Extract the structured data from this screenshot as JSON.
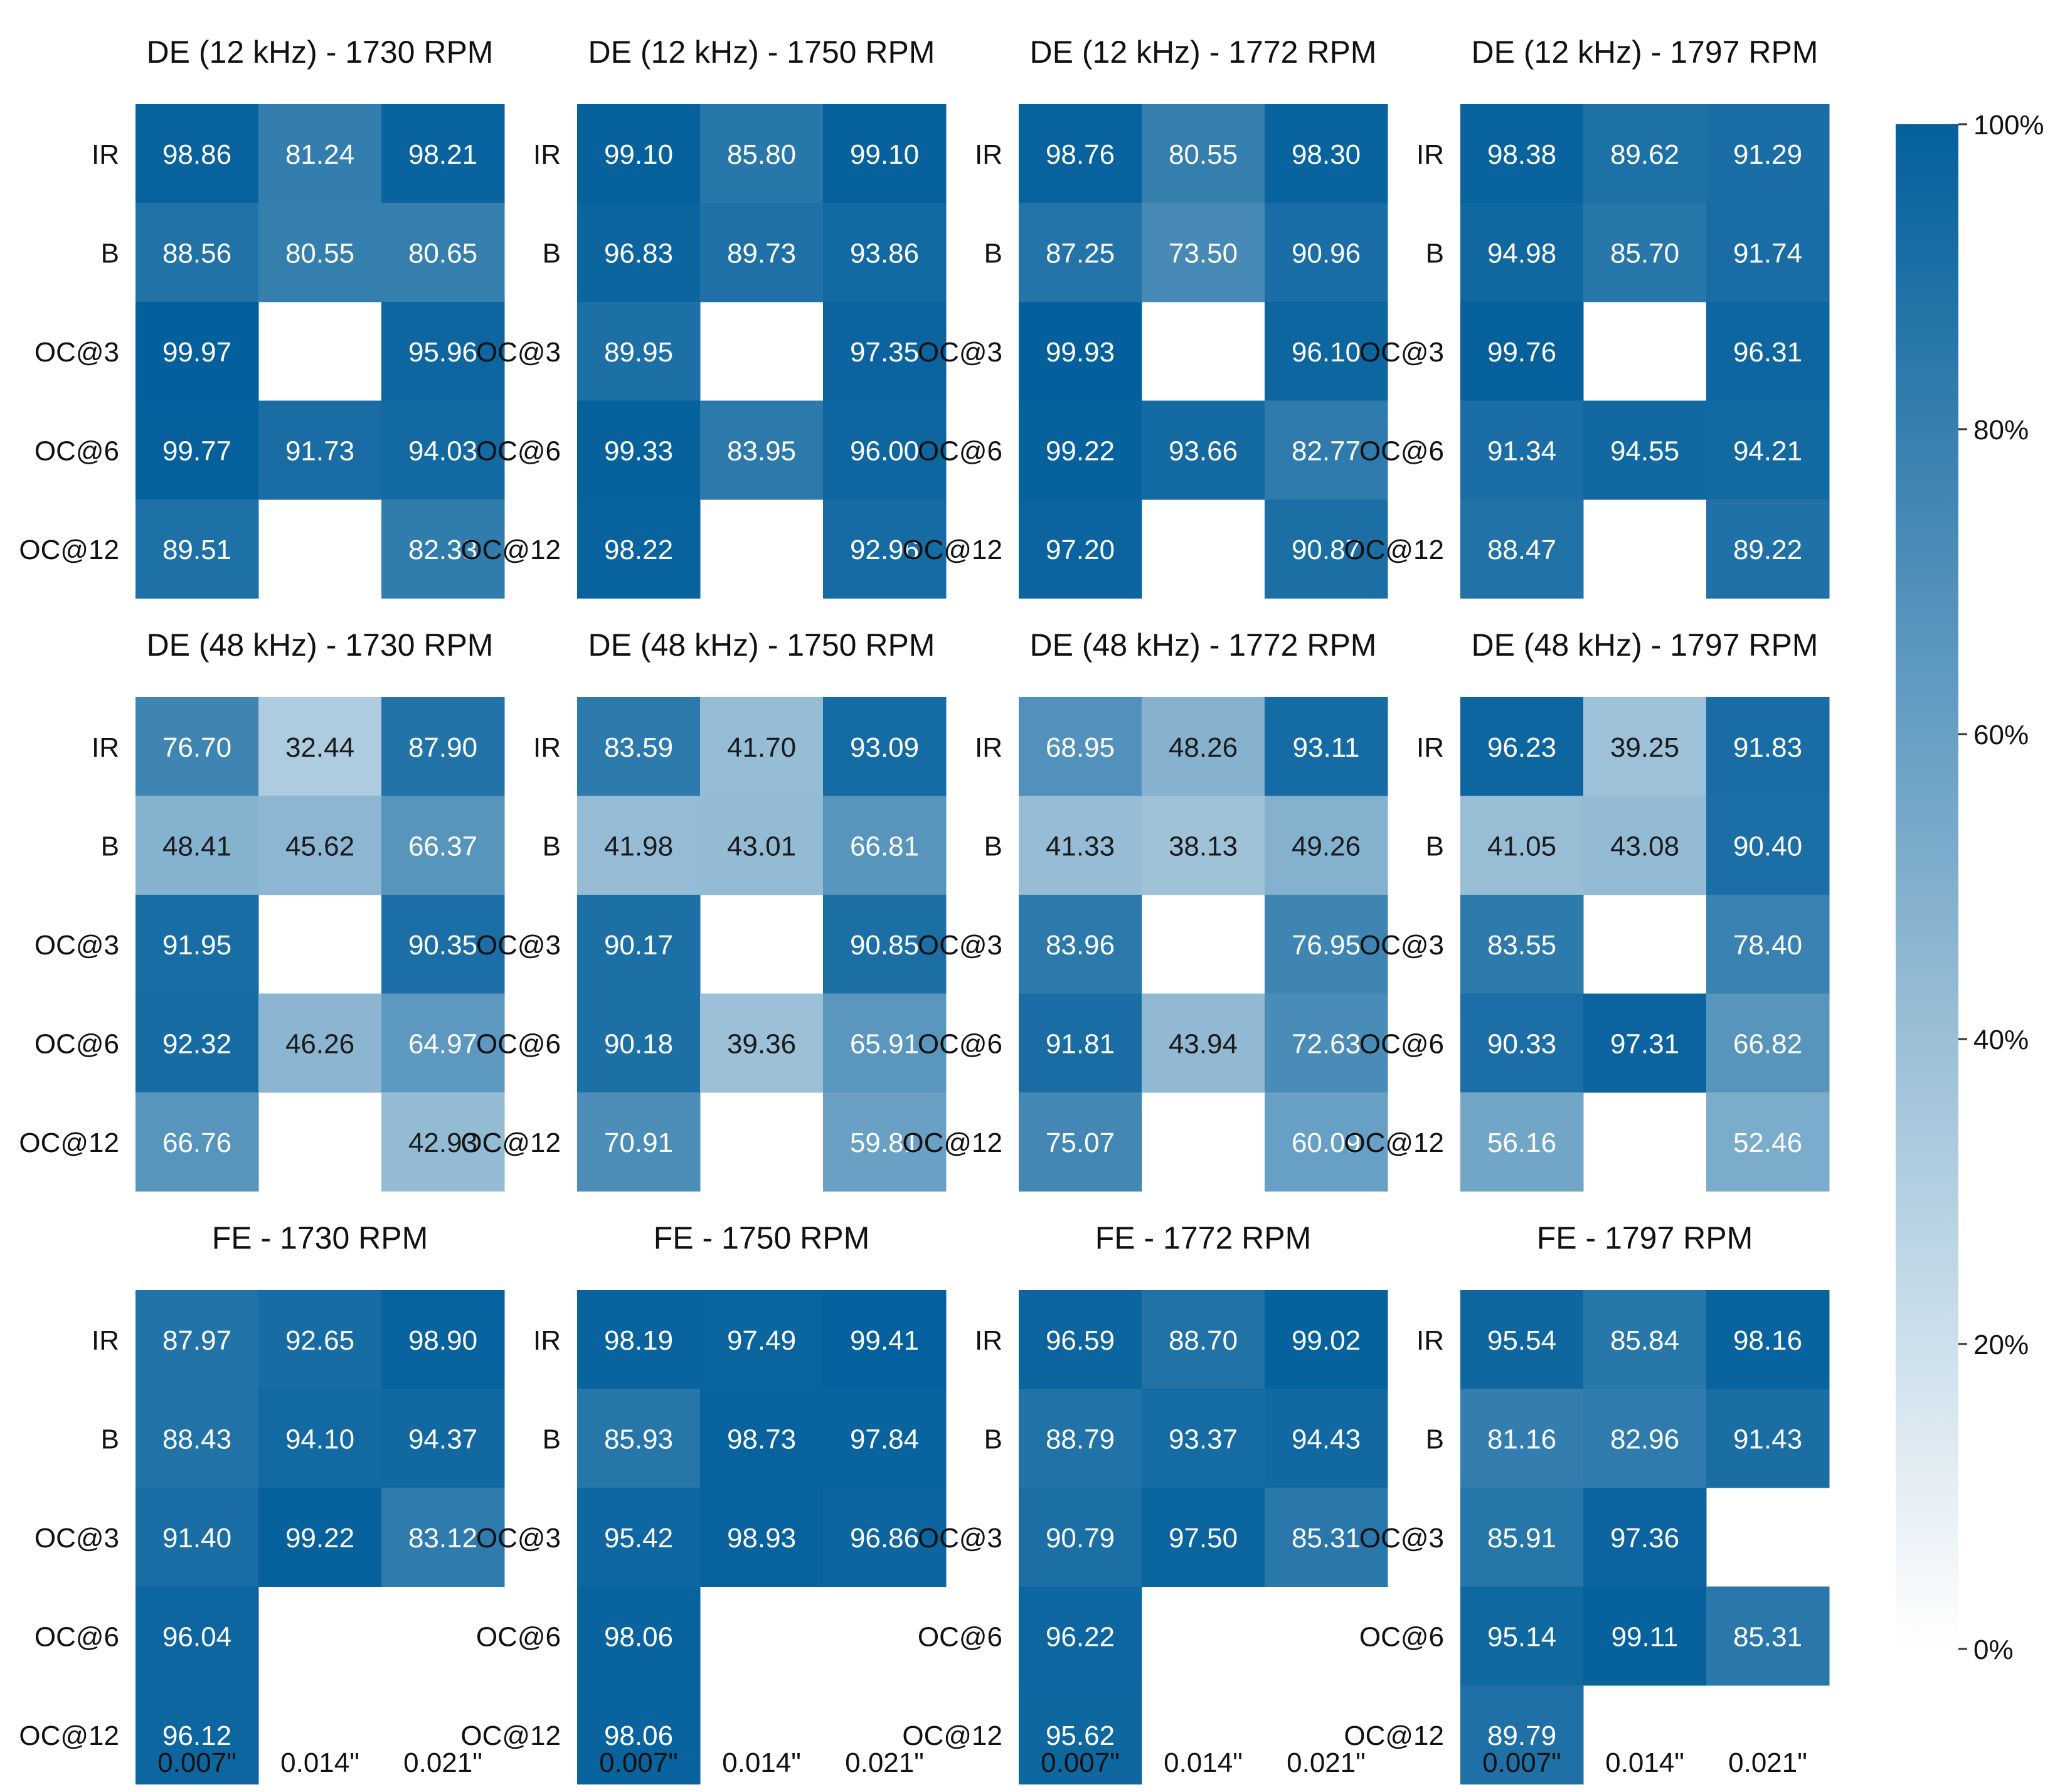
{
  "chart_data": {
    "type": "heatmap",
    "row_labels": [
      "IR",
      "B",
      "OC@3",
      "OC@6",
      "OC@12"
    ],
    "col_labels": [
      "0.007\"",
      "0.014\"",
      "0.021\""
    ],
    "colorbar": {
      "min": 0,
      "max": 100,
      "ticks": [
        "0%",
        "20%",
        "40%",
        "60%",
        "80%",
        "100%"
      ],
      "tick_values": [
        0,
        20,
        40,
        60,
        80,
        100
      ],
      "color_low": "#ffffff",
      "color_high": "#04609c"
    },
    "panels": [
      {
        "title": "DE (12 kHz) - 1730 RPM",
        "values": [
          [
            98.86,
            81.24,
            98.21
          ],
          [
            88.56,
            80.55,
            80.65
          ],
          [
            99.97,
            null,
            95.96
          ],
          [
            99.77,
            91.73,
            94.03
          ],
          [
            89.51,
            null,
            82.33
          ]
        ]
      },
      {
        "title": "DE (12 kHz) - 1750 RPM",
        "values": [
          [
            99.1,
            85.8,
            99.1
          ],
          [
            96.83,
            89.73,
            93.86
          ],
          [
            89.95,
            null,
            97.35
          ],
          [
            99.33,
            83.95,
            96.0
          ],
          [
            98.22,
            null,
            92.96
          ]
        ]
      },
      {
        "title": "DE (12 kHz) - 1772 RPM",
        "values": [
          [
            98.76,
            80.55,
            98.3
          ],
          [
            87.25,
            73.5,
            90.96
          ],
          [
            99.93,
            null,
            96.1
          ],
          [
            99.22,
            93.66,
            82.77
          ],
          [
            97.2,
            null,
            90.87
          ]
        ]
      },
      {
        "title": "DE (12 kHz) - 1797 RPM",
        "values": [
          [
            98.38,
            89.62,
            91.29
          ],
          [
            94.98,
            85.7,
            91.74
          ],
          [
            99.76,
            null,
            96.31
          ],
          [
            91.34,
            94.55,
            94.21
          ],
          [
            88.47,
            null,
            89.22
          ]
        ]
      },
      {
        "title": "DE (48 kHz) - 1730 RPM",
        "values": [
          [
            76.7,
            32.44,
            87.9
          ],
          [
            48.41,
            45.62,
            66.37
          ],
          [
            91.95,
            null,
            90.35
          ],
          [
            92.32,
            46.26,
            64.97
          ],
          [
            66.76,
            null,
            42.93
          ]
        ]
      },
      {
        "title": "DE (48 kHz) - 1750 RPM",
        "values": [
          [
            83.59,
            41.7,
            93.09
          ],
          [
            41.98,
            43.01,
            66.81
          ],
          [
            90.17,
            null,
            90.85
          ],
          [
            90.18,
            39.36,
            65.91
          ],
          [
            70.91,
            null,
            59.81
          ]
        ]
      },
      {
        "title": "DE (48 kHz) - 1772 RPM",
        "values": [
          [
            68.95,
            48.26,
            93.11
          ],
          [
            41.33,
            38.13,
            49.26
          ],
          [
            83.96,
            null,
            76.95
          ],
          [
            91.81,
            43.94,
            72.63
          ],
          [
            75.07,
            null,
            60.09
          ]
        ]
      },
      {
        "title": "DE (48 kHz) - 1797 RPM",
        "values": [
          [
            96.23,
            39.25,
            91.83
          ],
          [
            41.05,
            43.08,
            90.4
          ],
          [
            83.55,
            null,
            78.4
          ],
          [
            90.33,
            97.31,
            66.82
          ],
          [
            56.16,
            null,
            52.46
          ]
        ]
      },
      {
        "title": "FE - 1730 RPM",
        "values": [
          [
            87.97,
            92.65,
            98.9
          ],
          [
            88.43,
            94.1,
            94.37
          ],
          [
            91.4,
            99.22,
            83.12
          ],
          [
            96.04,
            null,
            null
          ],
          [
            96.12,
            null,
            null
          ]
        ]
      },
      {
        "title": "FE - 1750 RPM",
        "values": [
          [
            98.19,
            97.49,
            99.41
          ],
          [
            85.93,
            98.73,
            97.84
          ],
          [
            95.42,
            98.93,
            96.86
          ],
          [
            98.06,
            null,
            null
          ],
          [
            98.06,
            null,
            null
          ]
        ]
      },
      {
        "title": "FE - 1772 RPM",
        "values": [
          [
            96.59,
            88.7,
            99.02
          ],
          [
            88.79,
            93.37,
            94.43
          ],
          [
            90.79,
            97.5,
            85.31
          ],
          [
            96.22,
            null,
            null
          ],
          [
            95.62,
            null,
            null
          ]
        ]
      },
      {
        "title": "FE - 1797 RPM",
        "values": [
          [
            95.54,
            85.84,
            98.16
          ],
          [
            81.16,
            82.96,
            91.43
          ],
          [
            85.91,
            97.36,
            null
          ],
          [
            95.14,
            99.11,
            85.31
          ],
          [
            89.79,
            null,
            null
          ]
        ]
      }
    ]
  }
}
